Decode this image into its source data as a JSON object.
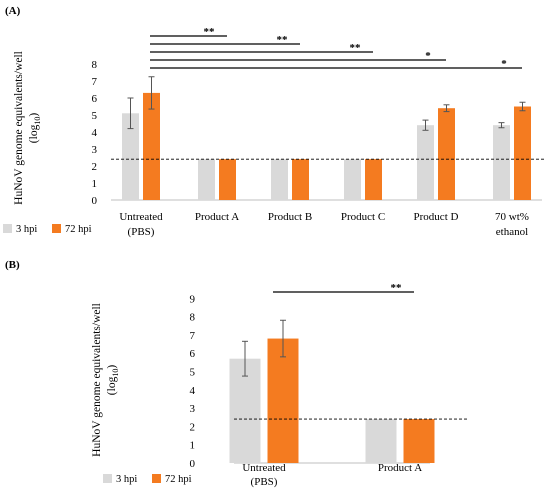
{
  "chart_data": [
    {
      "type": "bar",
      "panel_label": "(A)",
      "categories": [
        [
          "Untreated",
          "(PBS)"
        ],
        [
          "Product A"
        ],
        [
          "Product B"
        ],
        [
          "Product C"
        ],
        [
          "Product D"
        ],
        [
          "70 wt%",
          "ethanol"
        ]
      ],
      "series": [
        {
          "name": "3 hpi",
          "color": "#d9d9d9",
          "values": [
            5.1,
            2.4,
            2.4,
            2.4,
            4.4,
            4.4
          ],
          "errors": [
            0.9,
            0,
            0,
            0,
            0.3,
            0.15
          ]
        },
        {
          "name": "72 hpi",
          "color": "#f47b20",
          "values": [
            6.3,
            2.4,
            2.4,
            2.4,
            5.4,
            5.5
          ],
          "errors": [
            0.95,
            0,
            0,
            0,
            0.2,
            0.25
          ]
        }
      ],
      "ylabel": [
        "HuNoV genome equivalents/well",
        "(log",
        "10",
        ")"
      ],
      "ylim": [
        0,
        8
      ],
      "yticks": [
        "0",
        "1",
        "2",
        "3",
        "4",
        "5",
        "6",
        "7",
        "8"
      ],
      "threshold": 2.4,
      "legend": "bottom-left",
      "significance": [
        {
          "label": "**",
          "to_category": 1
        },
        {
          "label": "**",
          "to_category": 2
        },
        {
          "label": "**",
          "to_category": 3
        },
        {
          "label": "*",
          "to_category": 4
        },
        {
          "label": "*",
          "to_category": 5
        }
      ]
    },
    {
      "type": "bar",
      "panel_label": "(B)",
      "categories": [
        [
          "Untreated",
          "(PBS)"
        ],
        [
          "Product A"
        ]
      ],
      "series": [
        {
          "name": "3 hpi",
          "color": "#d9d9d9",
          "values": [
            5.7,
            2.4
          ],
          "errors": [
            0.95,
            0
          ]
        },
        {
          "name": "72 hpi",
          "color": "#f47b20",
          "values": [
            6.8,
            2.4
          ],
          "errors": [
            1.0,
            0
          ]
        }
      ],
      "ylabel": [
        "HuNoV genome equivalents/well",
        "(log",
        "10",
        ")"
      ],
      "ylim": [
        0,
        9
      ],
      "yticks": [
        "0",
        "1",
        "2",
        "3",
        "4",
        "5",
        "6",
        "7",
        "8",
        "9"
      ],
      "threshold": 2.4,
      "legend": "bottom-left",
      "significance": [
        {
          "label": "**",
          "to_category": 1
        }
      ]
    }
  ]
}
